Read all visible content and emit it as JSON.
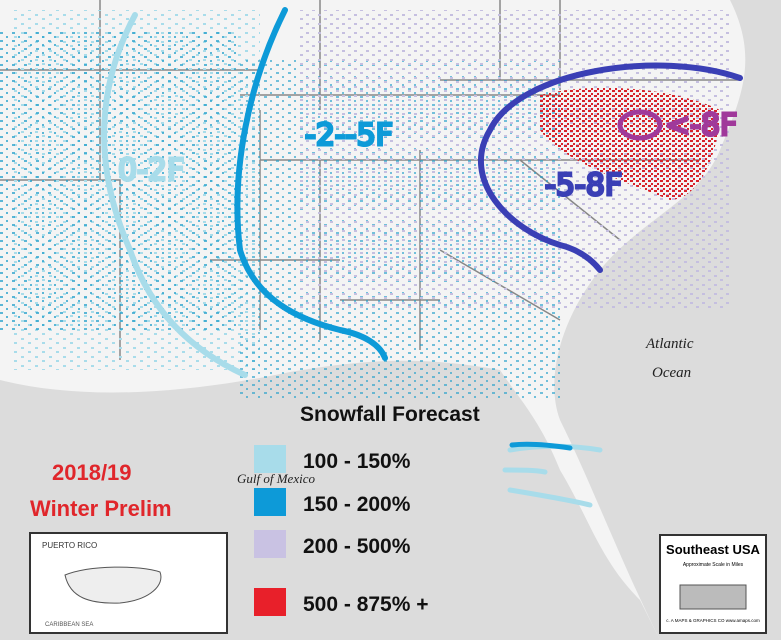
{
  "map": {
    "title": "Snowfall Forecast",
    "season": "2018/19",
    "subtitle": "Winter Prelim",
    "legend": [
      {
        "label": "100 - 150%",
        "color": "#a8dcea"
      },
      {
        "label": "150 - 200%",
        "color": "#0d9ad8"
      },
      {
        "label": "200 - 500%",
        "color": "#c9c2e3"
      },
      {
        "label": "500 - 875% +",
        "color": "#e8202a"
      }
    ],
    "annotations": [
      "0-2F",
      "-2--5F",
      "-5-8F",
      "<-8F"
    ],
    "water_labels": [
      "Gulf of Mexico",
      "Atlantic",
      "Ocean"
    ],
    "inset": {
      "title": "PUERTO RICO",
      "sea": "CARIBBEAN SEA"
    },
    "badge": {
      "title": "Southeast USA",
      "scale": "Approximate Scale in Miles",
      "credit": "c. A MAPS & GRAPHICS CO www.amaps.com"
    }
  }
}
